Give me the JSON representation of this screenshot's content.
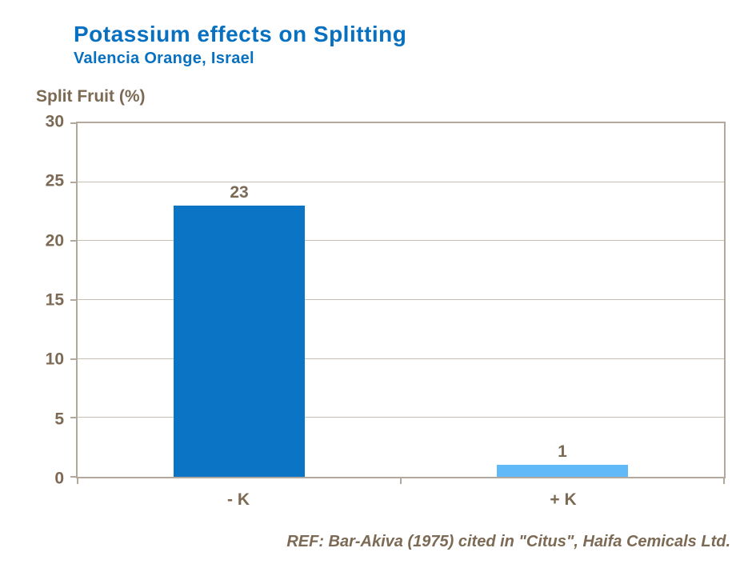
{
  "header": {
    "title": "Potassium effects on Splitting",
    "subtitle": "Valencia Orange, Israel"
  },
  "chart_data": {
    "type": "bar",
    "title": "Potassium effects on Splitting",
    "subtitle": "Valencia Orange, Israel",
    "ylabel": "Split Fruit (%)",
    "xlabel": "",
    "categories": [
      "- K",
      "+ K"
    ],
    "values": [
      23,
      1
    ],
    "data_labels": [
      "23",
      "1"
    ],
    "bar_colors": [
      "#0B74C5",
      "#62B9F7"
    ],
    "bar_width_pct": 20.2,
    "ylim": [
      0,
      30
    ],
    "yticks": [
      0,
      5,
      10,
      15,
      20,
      25,
      30
    ],
    "grid": true,
    "legend": "none"
  },
  "footer": {
    "reference": "REF: Bar-Akiva (1975) cited in \"Citus\", Haifa Cemicals Ltd."
  },
  "colors": {
    "title_blue": "#0770C0",
    "text_brown": "#7C6A55",
    "axis_line": "#B2A89B",
    "gridline": "#C7C0B4",
    "background": "#FFFFFF",
    "bar_dark_blue": "#0B74C5",
    "bar_light_blue": "#62B9F7"
  }
}
